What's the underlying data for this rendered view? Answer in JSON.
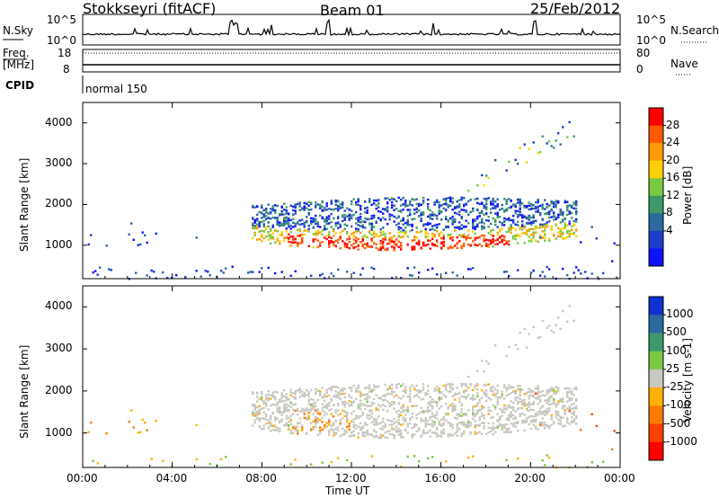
{
  "header": {
    "station": "Stokkseyri (fitACF)",
    "beam": "Beam 01",
    "date": "25/Feb/2012"
  },
  "strips": {
    "nsky_label": "N.Sky",
    "nsearch_label": "N.Search",
    "noise_ticks_left": [
      "10^5",
      "10^0"
    ],
    "noise_ticks_right": [
      "10^5",
      "10^0"
    ],
    "freq_label_1": "Freq.",
    "freq_label_2": "[MHz]",
    "freq_ticks": [
      "18",
      "8"
    ],
    "nave_label": "Nave",
    "nave_ticks": [
      "80",
      "0"
    ],
    "cpid_label": "CPID",
    "cpid_value": "normal 150"
  },
  "chart_data": [
    {
      "type": "heatmap",
      "name": "Power",
      "ylabel": "Slant Range [km]",
      "xlabel": "Time UT",
      "x_ticks": [
        "00:00",
        "04:00",
        "08:00",
        "12:00",
        "16:00",
        "20:00",
        "00:00"
      ],
      "x_range_hours": [
        0,
        24
      ],
      "y_ticks": [
        1000,
        2000,
        3000,
        4000
      ],
      "ylim": [
        180,
        4500
      ],
      "colorbar": {
        "label": "Power [dB]",
        "ticks": [
          "28",
          "24",
          "20",
          "16",
          "12",
          "8",
          "4"
        ],
        "colors": [
          "#ff0000",
          "#ff5a00",
          "#ff9a00",
          "#ffd000",
          "#7ac943",
          "#3c9a6a",
          "#2a6aa0",
          "#1e3cc8",
          "#1010ff"
        ]
      }
    },
    {
      "type": "heatmap",
      "name": "Velocity",
      "ylabel": "Slant Range [km]",
      "xlabel": "Time UT",
      "x_ticks": [
        "00:00",
        "04:00",
        "08:00",
        "12:00",
        "16:00",
        "20:00",
        "00:00"
      ],
      "x_range_hours": [
        0,
        24
      ],
      "y_ticks": [
        1000,
        2000,
        3000,
        4000
      ],
      "ylim": [
        180,
        4500
      ],
      "colorbar": {
        "label": "Velocity [m s-1]",
        "ticks": [
          "1000",
          "500",
          "100",
          "25",
          "-25",
          "-100",
          "-500",
          "-1000"
        ],
        "colors": [
          "#1030d0",
          "#2a6aa0",
          "#3c9a6a",
          "#7ac943",
          "#c8c8c0",
          "#ffb000",
          "#ff7a00",
          "#ff4000",
          "#ff0000"
        ]
      }
    }
  ],
  "time_axis_label": "Time UT"
}
